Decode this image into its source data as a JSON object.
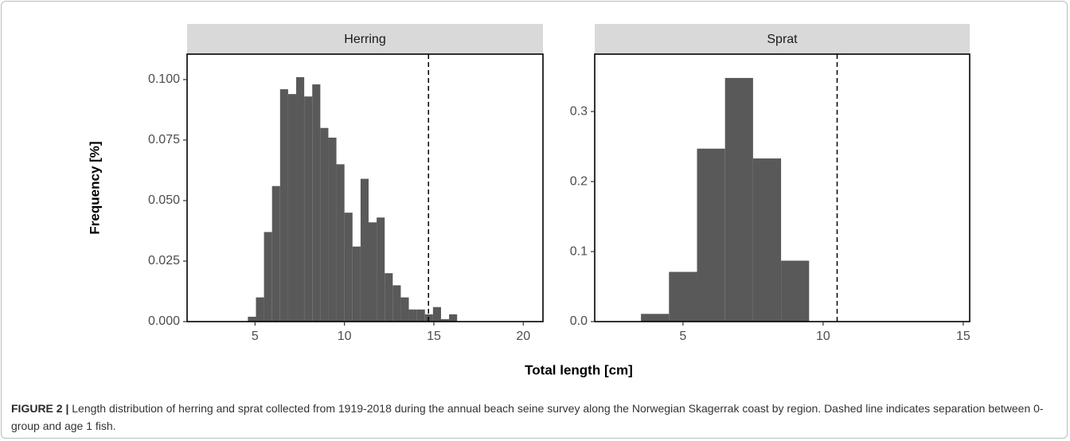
{
  "chart_data": [
    {
      "type": "histogram",
      "title": "Herring",
      "color": "#595959",
      "bins": [
        4.6,
        5.05,
        5.5,
        5.95,
        6.4,
        6.85,
        7.3,
        7.75,
        8.2,
        8.65,
        9.1,
        9.55,
        10,
        10.45,
        10.9,
        11.35,
        11.8,
        12.25,
        12.7,
        13.15,
        13.6,
        14.05,
        14.5,
        14.95,
        15.4,
        15.85,
        16.3
      ],
      "values": [
        0.002,
        0.01,
        0.037,
        0.056,
        0.096,
        0.094,
        0.101,
        0.093,
        0.098,
        0.08,
        0.076,
        0.065,
        0.045,
        0.031,
        0.059,
        0.041,
        0.043,
        0.02,
        0.015,
        0.01,
        0.005,
        0.005,
        0.003,
        0.006,
        0.001,
        0.003
      ],
      "xlim": [
        1.2,
        21.1
      ],
      "xticks": [
        5,
        10,
        15,
        20
      ],
      "ylim": [
        0,
        0.1105
      ],
      "yticks": [
        {
          "value": 0,
          "label": "0.000"
        },
        {
          "value": 0.025,
          "label": "0.025"
        },
        {
          "value": 0.05,
          "label": "0.050"
        },
        {
          "value": 0.075,
          "label": "0.075"
        },
        {
          "value": 0.1,
          "label": "0.100"
        }
      ],
      "vline": 14.7,
      "vline_style": "dashed"
    },
    {
      "type": "histogram",
      "title": "Sprat",
      "color": "#595959",
      "bins": [
        3.5,
        4.5,
        5.5,
        6.5,
        7.5,
        8.5,
        9.5
      ],
      "values": [
        0.011,
        0.071,
        0.247,
        0.348,
        0.233,
        0.087
      ],
      "xlim": [
        1.85,
        15.23
      ],
      "xticks": [
        5,
        10,
        15
      ],
      "ylim": [
        0,
        0.382
      ],
      "yticks": [
        {
          "value": 0,
          "label": "0.0"
        },
        0.1,
        0.2,
        0.3
      ],
      "vline": 10.5,
      "vline_style": "dashed"
    }
  ],
  "x_label": "Total length [cm]",
  "y_label": "Frequency [%]",
  "caption": {
    "label": "FIGURE 2 |",
    "text": "Length distribution of herring and sprat collected from 1919-2018 during the annual beach seine survey along the Norwegian Skagerrak coast by region. Dashed line indicates separation between 0-group and age 1 fish."
  }
}
